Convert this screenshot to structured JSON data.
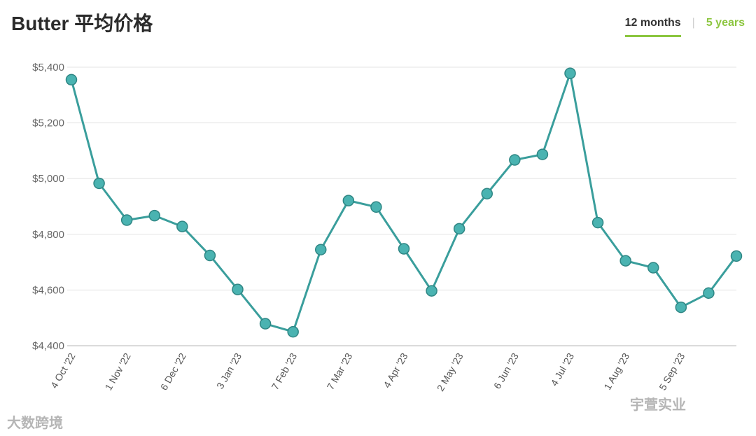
{
  "title": "Butter 平均价格",
  "tabs": [
    {
      "label": "12 months",
      "active": true
    },
    {
      "label": "5 years",
      "active": false
    }
  ],
  "watermarks": [
    "大数跨境",
    "宇萱实业"
  ],
  "colors": {
    "line": "#3a9e9c",
    "marker_fill": "#4ab3b1",
    "tab_accent": "#8cc63f",
    "grid": "#e3e3e3"
  },
  "chart_data": {
    "type": "line",
    "title": "Butter 平均价格",
    "ylabel": "",
    "xlabel": "",
    "ylim": [
      4400,
      5400
    ],
    "yticks": [
      4400,
      4600,
      4800,
      5000,
      5200,
      5400
    ],
    "ytick_labels": [
      "$4,400",
      "$4,600",
      "$4,800",
      "$5,000",
      "$5,200",
      "$5,400"
    ],
    "grid": true,
    "xtick_labels": [
      "4 Oct '22",
      "1 Nov '22",
      "6 Dec '22",
      "3 Jan '23",
      "7 Feb '23",
      "7 Mar '23",
      "4 Apr '23",
      "2 May '23",
      "6 Jun '23",
      "4 Jul '23",
      "1 Aug '23",
      "5 Sep '23"
    ],
    "series": [
      {
        "values": [
          5355,
          4983,
          4851,
          4867,
          4828,
          4724,
          4602,
          4479,
          4450,
          4745,
          4921,
          4898,
          4748,
          4597,
          4820,
          4946,
          5067,
          5087,
          5378,
          4842,
          4705,
          4680,
          4538,
          4589,
          4722
        ]
      }
    ]
  }
}
